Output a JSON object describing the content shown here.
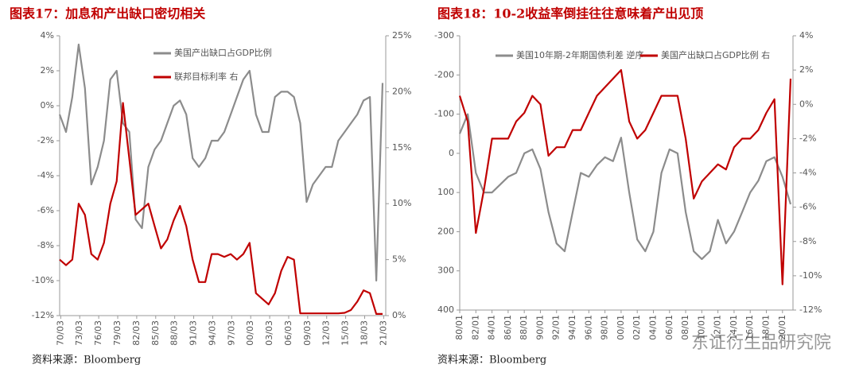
{
  "chart_data": [
    {
      "type": "line",
      "title": "图表17：加息和产出缺口密切相关",
      "source": "资料来源：Bloomberg",
      "x": [
        1970,
        1971,
        1972,
        1973,
        1974,
        1975,
        1976,
        1977,
        1978,
        1979,
        1980,
        1981,
        1982,
        1983,
        1984,
        1985,
        1986,
        1987,
        1988,
        1989,
        1990,
        1991,
        1992,
        1993,
        1994,
        1995,
        1996,
        1997,
        1998,
        1999,
        2000,
        2001,
        2002,
        2003,
        2004,
        2005,
        2006,
        2007,
        2008,
        2009,
        2010,
        2011,
        2012,
        2013,
        2014,
        2015,
        2016,
        2017,
        2018,
        2019,
        2020,
        2021
      ],
      "xlim": [
        1970,
        2021.5
      ],
      "xticks": [
        {
          "value": 1970.17,
          "label": "70/03"
        },
        {
          "value": 1973.17,
          "label": "73/03"
        },
        {
          "value": 1976.17,
          "label": "76/03"
        },
        {
          "value": 1979.17,
          "label": "79/03"
        },
        {
          "value": 1982.17,
          "label": "82/03"
        },
        {
          "value": 1985.17,
          "label": "85/03"
        },
        {
          "value": 1988.17,
          "label": "88/03"
        },
        {
          "value": 1991.17,
          "label": "91/03"
        },
        {
          "value": 1994.17,
          "label": "94/03"
        },
        {
          "value": 1997.17,
          "label": "97/03"
        },
        {
          "value": 2000.17,
          "label": "00/03"
        },
        {
          "value": 2003.17,
          "label": "03/03"
        },
        {
          "value": 2006.17,
          "label": "06/03"
        },
        {
          "value": 2009.17,
          "label": "09/03"
        },
        {
          "value": 2012.17,
          "label": "12/03"
        },
        {
          "value": 2015.17,
          "label": "15/03"
        },
        {
          "value": 2018.17,
          "label": "18/03"
        },
        {
          "value": 2021.17,
          "label": "21/03"
        }
      ],
      "ylim": [
        -12,
        4
      ],
      "yticks": [
        {
          "value": 4,
          "label": "4%"
        },
        {
          "value": 2,
          "label": "2%"
        },
        {
          "value": 0,
          "label": "0%"
        },
        {
          "value": -2,
          "label": "-2%"
        },
        {
          "value": -4,
          "label": "-4%"
        },
        {
          "value": -6,
          "label": "-6%"
        },
        {
          "value": -8,
          "label": "-8%"
        },
        {
          "value": -10,
          "label": "-10%"
        },
        {
          "value": -12,
          "label": "-12%"
        }
      ],
      "y2lim": [
        0,
        25
      ],
      "y2ticks": [
        {
          "value": 25,
          "label": "25%"
        },
        {
          "value": 20,
          "label": "20%"
        },
        {
          "value": 15,
          "label": "15%"
        },
        {
          "value": 10,
          "label": "10%"
        },
        {
          "value": 5,
          "label": "5%"
        },
        {
          "value": 0,
          "label": "0%"
        }
      ],
      "legend": "vertical",
      "series": [
        {
          "name": "美国产出缺口占GDP比例",
          "color": "#8c8c8c",
          "values": [
            -0.5,
            -1.5,
            0.5,
            3.5,
            1.0,
            -4.5,
            -3.5,
            -2.0,
            1.5,
            2.0,
            -1.0,
            -1.5,
            -6.5,
            -7.0,
            -3.5,
            -2.5,
            -2.0,
            -1.0,
            0.0,
            0.3,
            -0.5,
            -3.0,
            -3.5,
            -3.0,
            -2.0,
            -2.0,
            -1.5,
            -0.5,
            0.5,
            1.5,
            2.0,
            -0.5,
            -1.5,
            -1.5,
            0.5,
            0.8,
            0.8,
            0.5,
            -1.0,
            -5.5,
            -4.5,
            -4.0,
            -3.5,
            -3.5,
            -2.0,
            -1.5,
            -1.0,
            -0.5,
            0.3,
            0.5,
            -10.0,
            1.3
          ]
        },
        {
          "name": "联邦目标利率 右",
          "color": "#c00000",
          "axis": "y2",
          "values": [
            5,
            4.5,
            5,
            10,
            9,
            5.5,
            5,
            6.5,
            10,
            12,
            19,
            14,
            9,
            9.5,
            10,
            8,
            6,
            6.8,
            8.5,
            9.8,
            8,
            5,
            3,
            3,
            5.5,
            5.5,
            5.25,
            5.5,
            5,
            5.5,
            6.5,
            2,
            1.5,
            1,
            2,
            4,
            5.25,
            5,
            0.2,
            0.2,
            0.2,
            0.2,
            0.2,
            0.2,
            0.2,
            0.25,
            0.5,
            1.25,
            2.25,
            2,
            0.15,
            0.15
          ]
        }
      ]
    },
    {
      "type": "line",
      "title": "图表18：10-2收益率倒挂往往意味着产出见顶",
      "source": "资料来源：Bloomberg",
      "x": [
        1980,
        1981,
        1982,
        1983,
        1984,
        1985,
        1986,
        1987,
        1988,
        1989,
        1990,
        1991,
        1992,
        1993,
        1994,
        1995,
        1996,
        1997,
        1998,
        1999,
        2000,
        2001,
        2002,
        2003,
        2004,
        2005,
        2006,
        2007,
        2008,
        2009,
        2010,
        2011,
        2012,
        2013,
        2014,
        2015,
        2016,
        2017,
        2018,
        2019,
        2020,
        2021
      ],
      "xlim": [
        1980,
        2021.3
      ],
      "xticks": [
        {
          "value": 1980,
          "label": "80/01"
        },
        {
          "value": 1982,
          "label": "82/01"
        },
        {
          "value": 1984,
          "label": "84/01"
        },
        {
          "value": 1986,
          "label": "86/01"
        },
        {
          "value": 1988,
          "label": "88/01"
        },
        {
          "value": 1990,
          "label": "90/01"
        },
        {
          "value": 1992,
          "label": "92/01"
        },
        {
          "value": 1994,
          "label": "94/01"
        },
        {
          "value": 1996,
          "label": "96/01"
        },
        {
          "value": 1998,
          "label": "98/01"
        },
        {
          "value": 2000,
          "label": "00/01"
        },
        {
          "value": 2002,
          "label": "02/01"
        },
        {
          "value": 2004,
          "label": "04/01"
        },
        {
          "value": 2006,
          "label": "06/01"
        },
        {
          "value": 2008,
          "label": "08/01"
        },
        {
          "value": 2010,
          "label": "10/01"
        },
        {
          "value": 2012,
          "label": "12/01"
        },
        {
          "value": 2014,
          "label": "14/01"
        },
        {
          "value": 2016,
          "label": "16/01"
        },
        {
          "value": 2018,
          "label": "18/01"
        },
        {
          "value": 2020,
          "label": "20/01"
        }
      ],
      "ylim": [
        -300,
        400
      ],
      "yreverse": true,
      "yticks": [
        -300,
        -200,
        -100,
        0,
        100,
        200,
        300,
        400
      ],
      "y2lim": [
        -12,
        4
      ],
      "y2ticks": [
        {
          "value": 4,
          "label": "4%"
        },
        {
          "value": 2,
          "label": "2%"
        },
        {
          "value": 0,
          "label": "0%"
        },
        {
          "value": -2,
          "label": "-2%"
        },
        {
          "value": -4,
          "label": "-4%"
        },
        {
          "value": -6,
          "label": "-6%"
        },
        {
          "value": -8,
          "label": "-8%"
        },
        {
          "value": -10,
          "label": "-10%"
        },
        {
          "value": -12,
          "label": "-12%"
        }
      ],
      "legend": "horizontal",
      "series": [
        {
          "name": "美国10年期-2年期国债利差 逆序",
          "color": "#8c8c8c",
          "values": [
            -50,
            -100,
            50,
            100,
            100,
            80,
            60,
            50,
            0,
            -10,
            40,
            150,
            230,
            250,
            150,
            50,
            60,
            30,
            10,
            20,
            -40,
            100,
            220,
            250,
            200,
            50,
            -10,
            0,
            150,
            250,
            270,
            250,
            170,
            230,
            200,
            150,
            100,
            70,
            20,
            10,
            60,
            130
          ]
        },
        {
          "name": "美国产出缺口占GDP比例 右",
          "color": "#c00000",
          "axis": "y2",
          "values": [
            0.5,
            -1,
            -7.5,
            -5,
            -2,
            -2,
            -2,
            -1,
            -0.5,
            0.5,
            0,
            -3,
            -2.5,
            -2.5,
            -1.5,
            -1.5,
            -0.5,
            0.5,
            1,
            1.5,
            2,
            -1,
            -2,
            -1.5,
            -0.5,
            0.5,
            0.5,
            0.5,
            -2,
            -5.5,
            -4.5,
            -4,
            -3.5,
            -3.8,
            -2.5,
            -2,
            -2,
            -1.5,
            -0.5,
            0.3,
            -10.5,
            1.5
          ]
        }
      ]
    }
  ],
  "watermark": "东证衍生品研究院"
}
